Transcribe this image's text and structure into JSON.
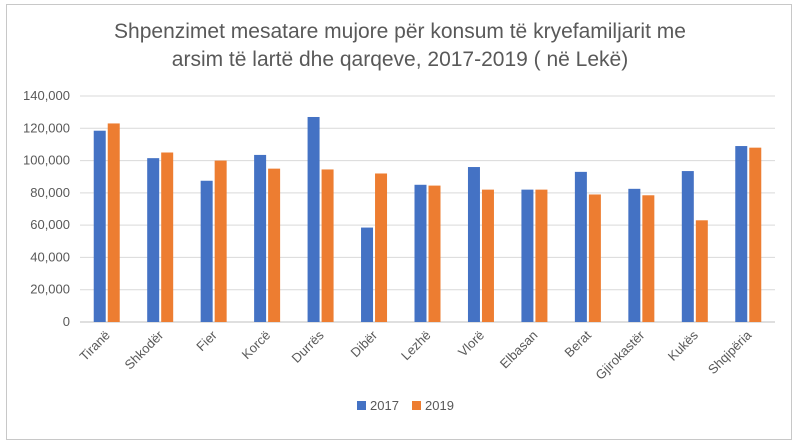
{
  "chart_data": {
    "type": "bar",
    "title_line1": "Shpenzimet mesatare mujore për konsum të kryefamiljarit me",
    "title_line2": "arsim të lartë dhe qarqeve, 2017-2019 ( në Lekë)",
    "categories": [
      "Tiranë",
      "Shkodër",
      "Fier",
      "Korcë",
      "Durrës",
      "Dibër",
      "Lezhë",
      "Vlorë",
      "Elbasan",
      "Berat",
      "Gjirokastër",
      "Kukës",
      "Shqipëria"
    ],
    "series": [
      {
        "name": "2017",
        "color": "#4472c4",
        "values": [
          118500,
          101500,
          87500,
          103500,
          127000,
          58500,
          85000,
          96000,
          82000,
          93000,
          82500,
          93500,
          109000
        ]
      },
      {
        "name": "2019",
        "color": "#ed7d31",
        "values": [
          123000,
          105000,
          100000,
          95000,
          94500,
          92000,
          84500,
          82000,
          82000,
          79000,
          78500,
          63000,
          108000
        ]
      }
    ],
    "ylim": [
      0,
      140000
    ],
    "yticks": [
      "0",
      "20,000",
      "40,000",
      "60,000",
      "80,000",
      "100,000",
      "120,000",
      "140,000"
    ],
    "grid": true,
    "legend": "bottom"
  }
}
